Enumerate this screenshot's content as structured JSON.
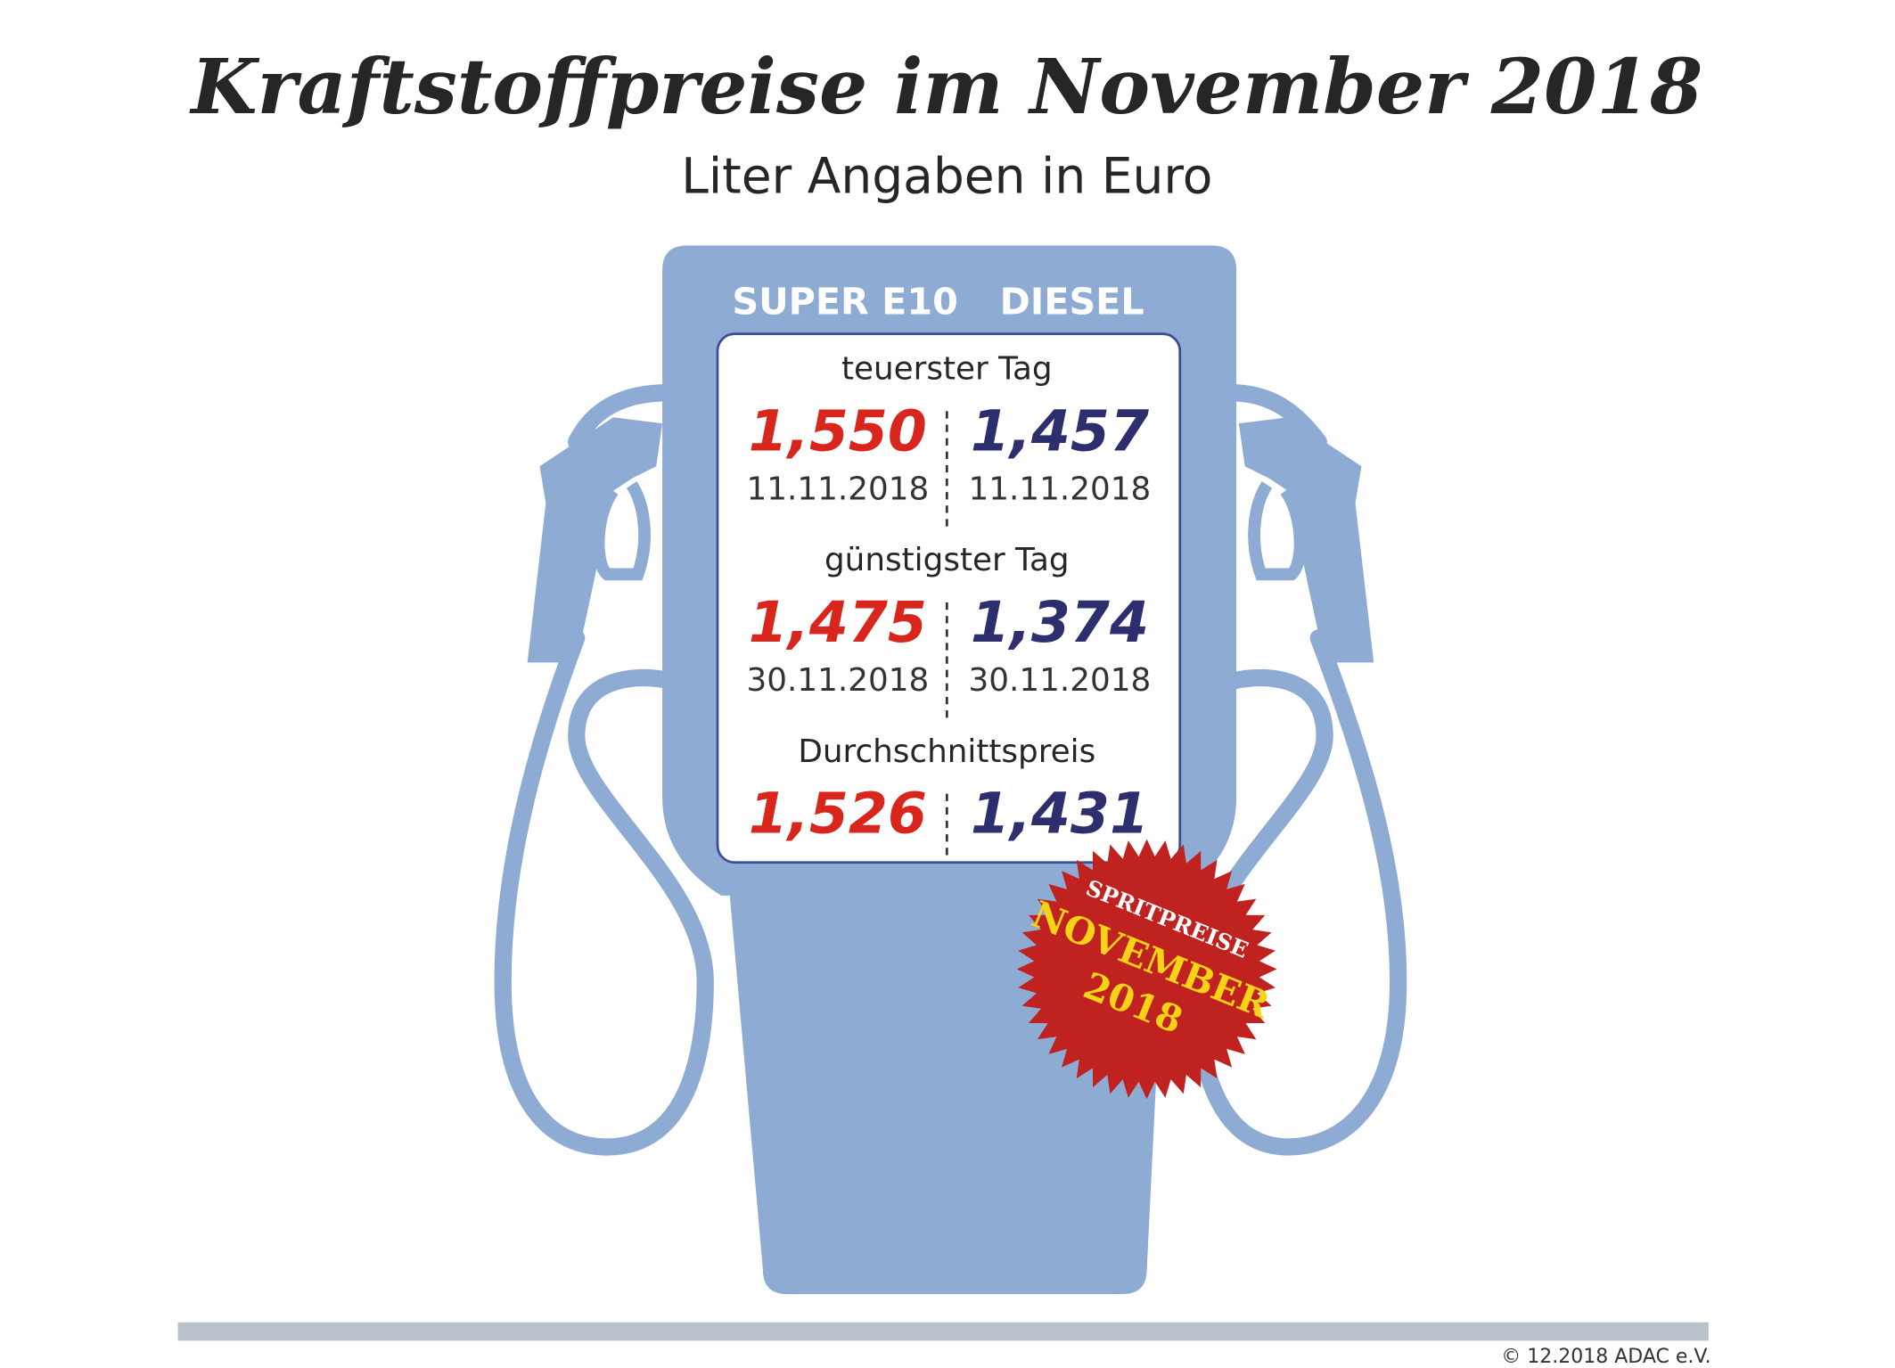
{
  "header": {
    "title": "Kraftstoffpreise im November 2018",
    "subtitle": "Liter Angaben in Euro"
  },
  "columns": [
    "SUPER E10",
    "DIESEL"
  ],
  "sections": [
    {
      "label": "teuerster Tag",
      "values": [
        "1,550",
        "1,457"
      ],
      "dates": [
        "11.11.2018",
        "11.11.2018"
      ]
    },
    {
      "label": "günstigster Tag",
      "values": [
        "1,475",
        "1,374"
      ],
      "dates": [
        "30.11.2018",
        "30.11.2018"
      ]
    },
    {
      "label": "Durchschnittspreis",
      "values": [
        "1,526",
        "1,431"
      ]
    }
  ],
  "badge": {
    "line1": "SPRITPREISE",
    "line2": "NOVEMBER",
    "line3": "2018"
  },
  "footer": "© 12.2018  ADAC e.V."
}
